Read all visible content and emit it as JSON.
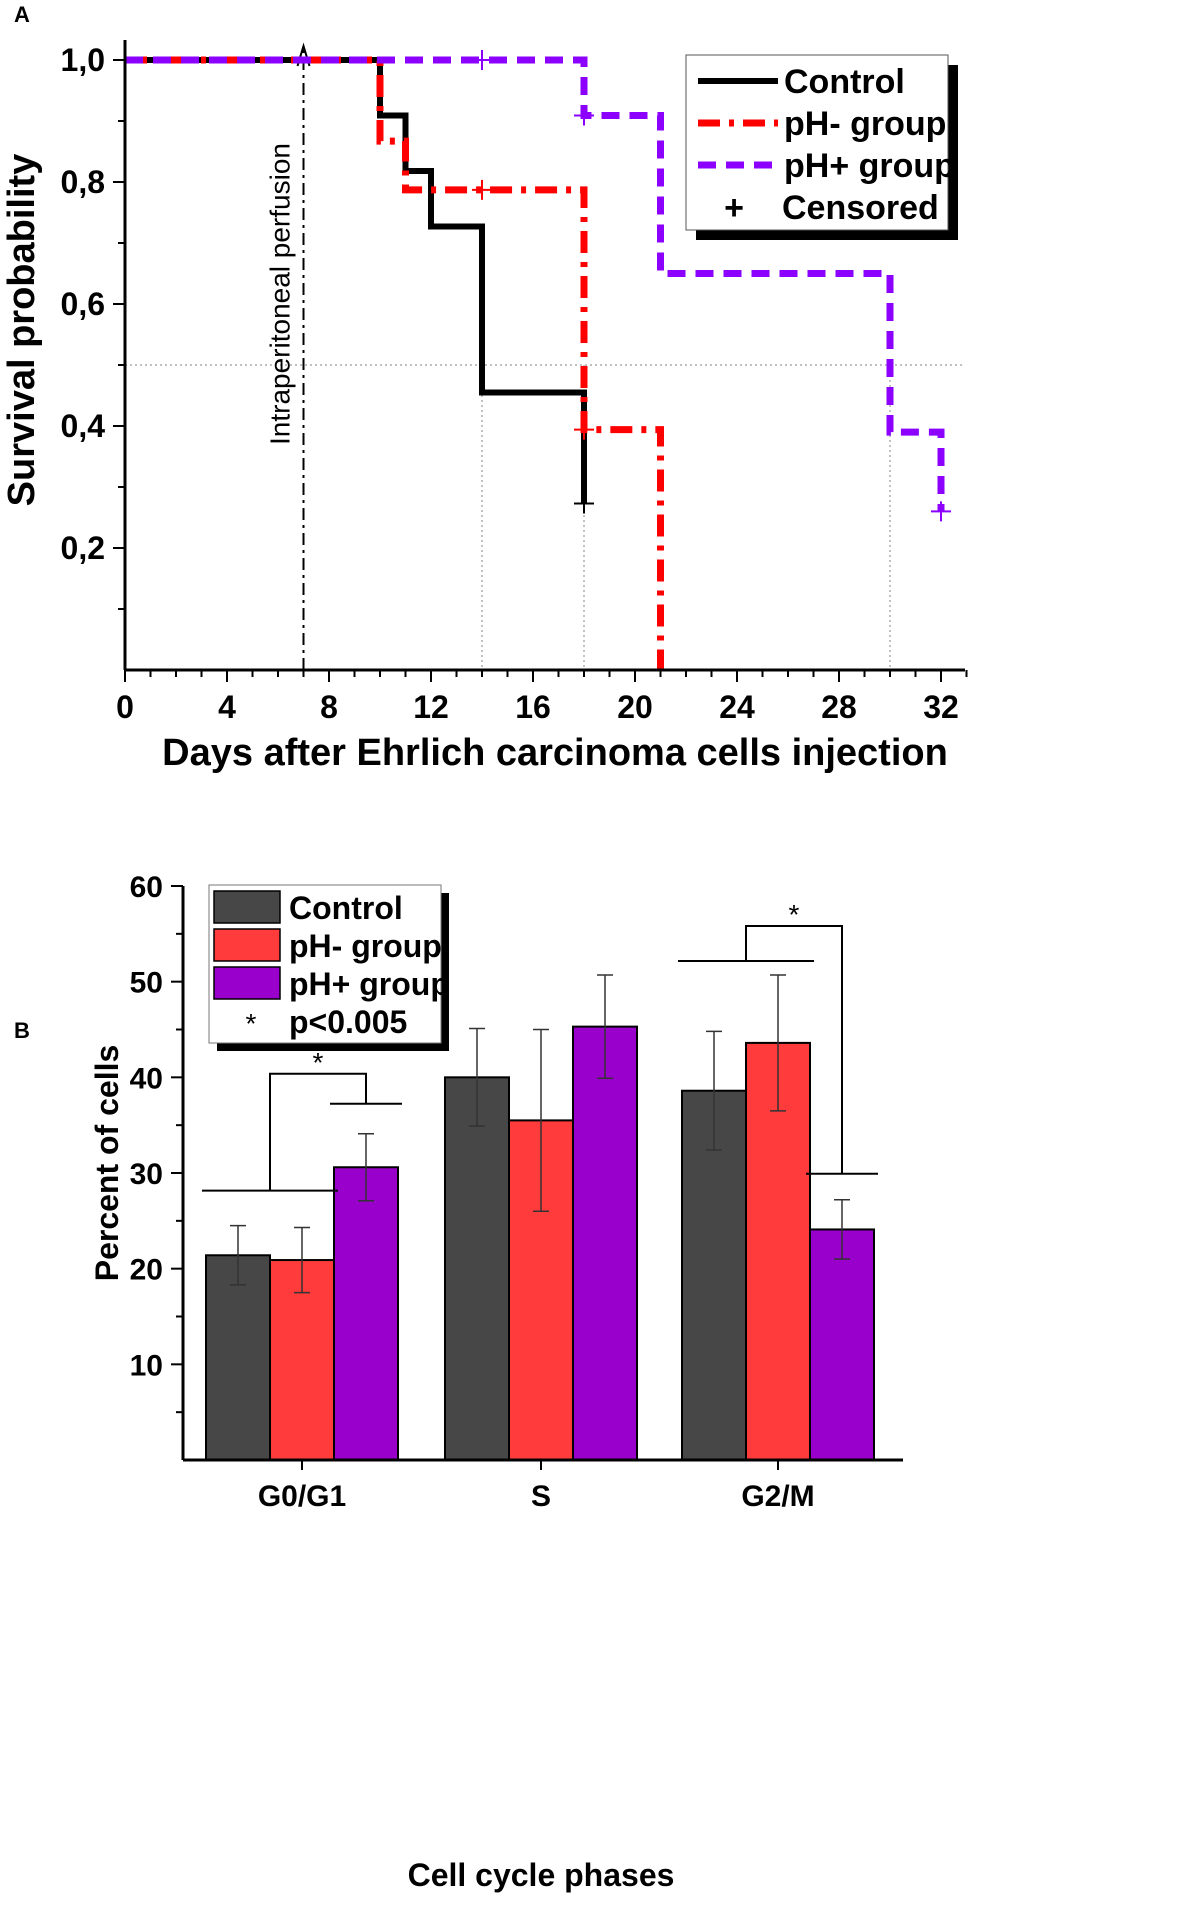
{
  "chart_data": [
    {
      "panel": "A",
      "type": "line",
      "title": "",
      "xlabel": "Days after Ehrlich carcinoma cells injection",
      "ylabel": "Survival probability",
      "xlim": [
        0,
        33
      ],
      "ylim": [
        0,
        1.0
      ],
      "xticks": [
        0,
        4,
        8,
        12,
        16,
        20,
        24,
        28,
        32
      ],
      "yticks": [
        0.2,
        0.4,
        0.6,
        0.8,
        1.0
      ],
      "xtick_labels": [
        "0",
        "4",
        "8",
        "12",
        "16",
        "20",
        "24",
        "28",
        "32"
      ],
      "ytick_labels": [
        "0,2",
        "0,4",
        "0,6",
        "0,8",
        "1,0"
      ],
      "median_line": 0.5,
      "annotation": {
        "text": "Intraperitoneal perfusion",
        "x": 7
      },
      "series": [
        {
          "name": "Control",
          "color": "#000000",
          "style": "solid",
          "steps": [
            [
              0,
              1.0
            ],
            [
              10,
              0.909
            ],
            [
              11,
              0.818
            ],
            [
              12,
              0.727
            ],
            [
              14,
              0.455
            ],
            [
              18,
              0.273
            ]
          ],
          "end_x": 18,
          "censored": [
            [
              18,
              0.273
            ]
          ]
        },
        {
          "name": "pH- group",
          "color": "#ff0000",
          "style": "dashdot",
          "steps": [
            [
              0,
              1.0
            ],
            [
              10,
              0.867
            ],
            [
              11,
              0.787
            ],
            [
              18,
              0.394
            ],
            [
              21,
              0.0
            ]
          ],
          "end_x": 21,
          "censored": [
            [
              14,
              0.787
            ],
            [
              18,
              0.394
            ]
          ]
        },
        {
          "name": "pH+ group",
          "color": "#8b00ff",
          "style": "dash",
          "steps": [
            [
              0,
              1.0
            ],
            [
              18,
              0.909
            ],
            [
              21,
              0.65
            ],
            [
              30,
              0.39
            ],
            [
              32,
              0.26
            ]
          ],
          "end_x": 32,
          "censored": [
            [
              14,
              1.0
            ],
            [
              18,
              0.909
            ],
            [
              32,
              0.26
            ]
          ]
        }
      ],
      "median_drops": [
        14,
        18,
        30
      ],
      "legend": {
        "position": "top-right",
        "entries": [
          "Control",
          "pH- group",
          "pH+ group",
          "Censored"
        ],
        "censored_marker": "+"
      }
    },
    {
      "panel": "B",
      "type": "bar",
      "title": "",
      "xlabel": "Cell cycle phases",
      "ylabel": "Percent of cells",
      "ylim": [
        0,
        60
      ],
      "yticks": [
        10,
        20,
        30,
        40,
        50,
        60
      ],
      "ytick_labels": [
        "10",
        "20",
        "30",
        "40",
        "50",
        "60"
      ],
      "categories": [
        "G0/G1",
        "S",
        "G2/M"
      ],
      "series": [
        {
          "name": "Control",
          "color": "#474747",
          "values": [
            21.4,
            40.0,
            38.6
          ],
          "errors": [
            3.1,
            5.1,
            6.2
          ]
        },
        {
          "name": "pH- group",
          "color": "#ff3b3b",
          "values": [
            20.9,
            35.5,
            43.6
          ],
          "errors": [
            3.4,
            9.5,
            7.1
          ]
        },
        {
          "name": "pH+ group",
          "color": "#9900cc",
          "values": [
            30.6,
            45.3,
            24.1
          ],
          "errors": [
            3.5,
            5.4,
            3.1
          ]
        }
      ],
      "significance": [
        {
          "category": "G0/G1",
          "symbol": "*"
        },
        {
          "category": "G2/M",
          "symbol": "*"
        }
      ],
      "legend": {
        "position": "top-left",
        "entries": [
          "Control",
          "pH- group",
          "pH+ group"
        ],
        "note_symbol": "*",
        "note_text": "p<0.005"
      }
    }
  ]
}
